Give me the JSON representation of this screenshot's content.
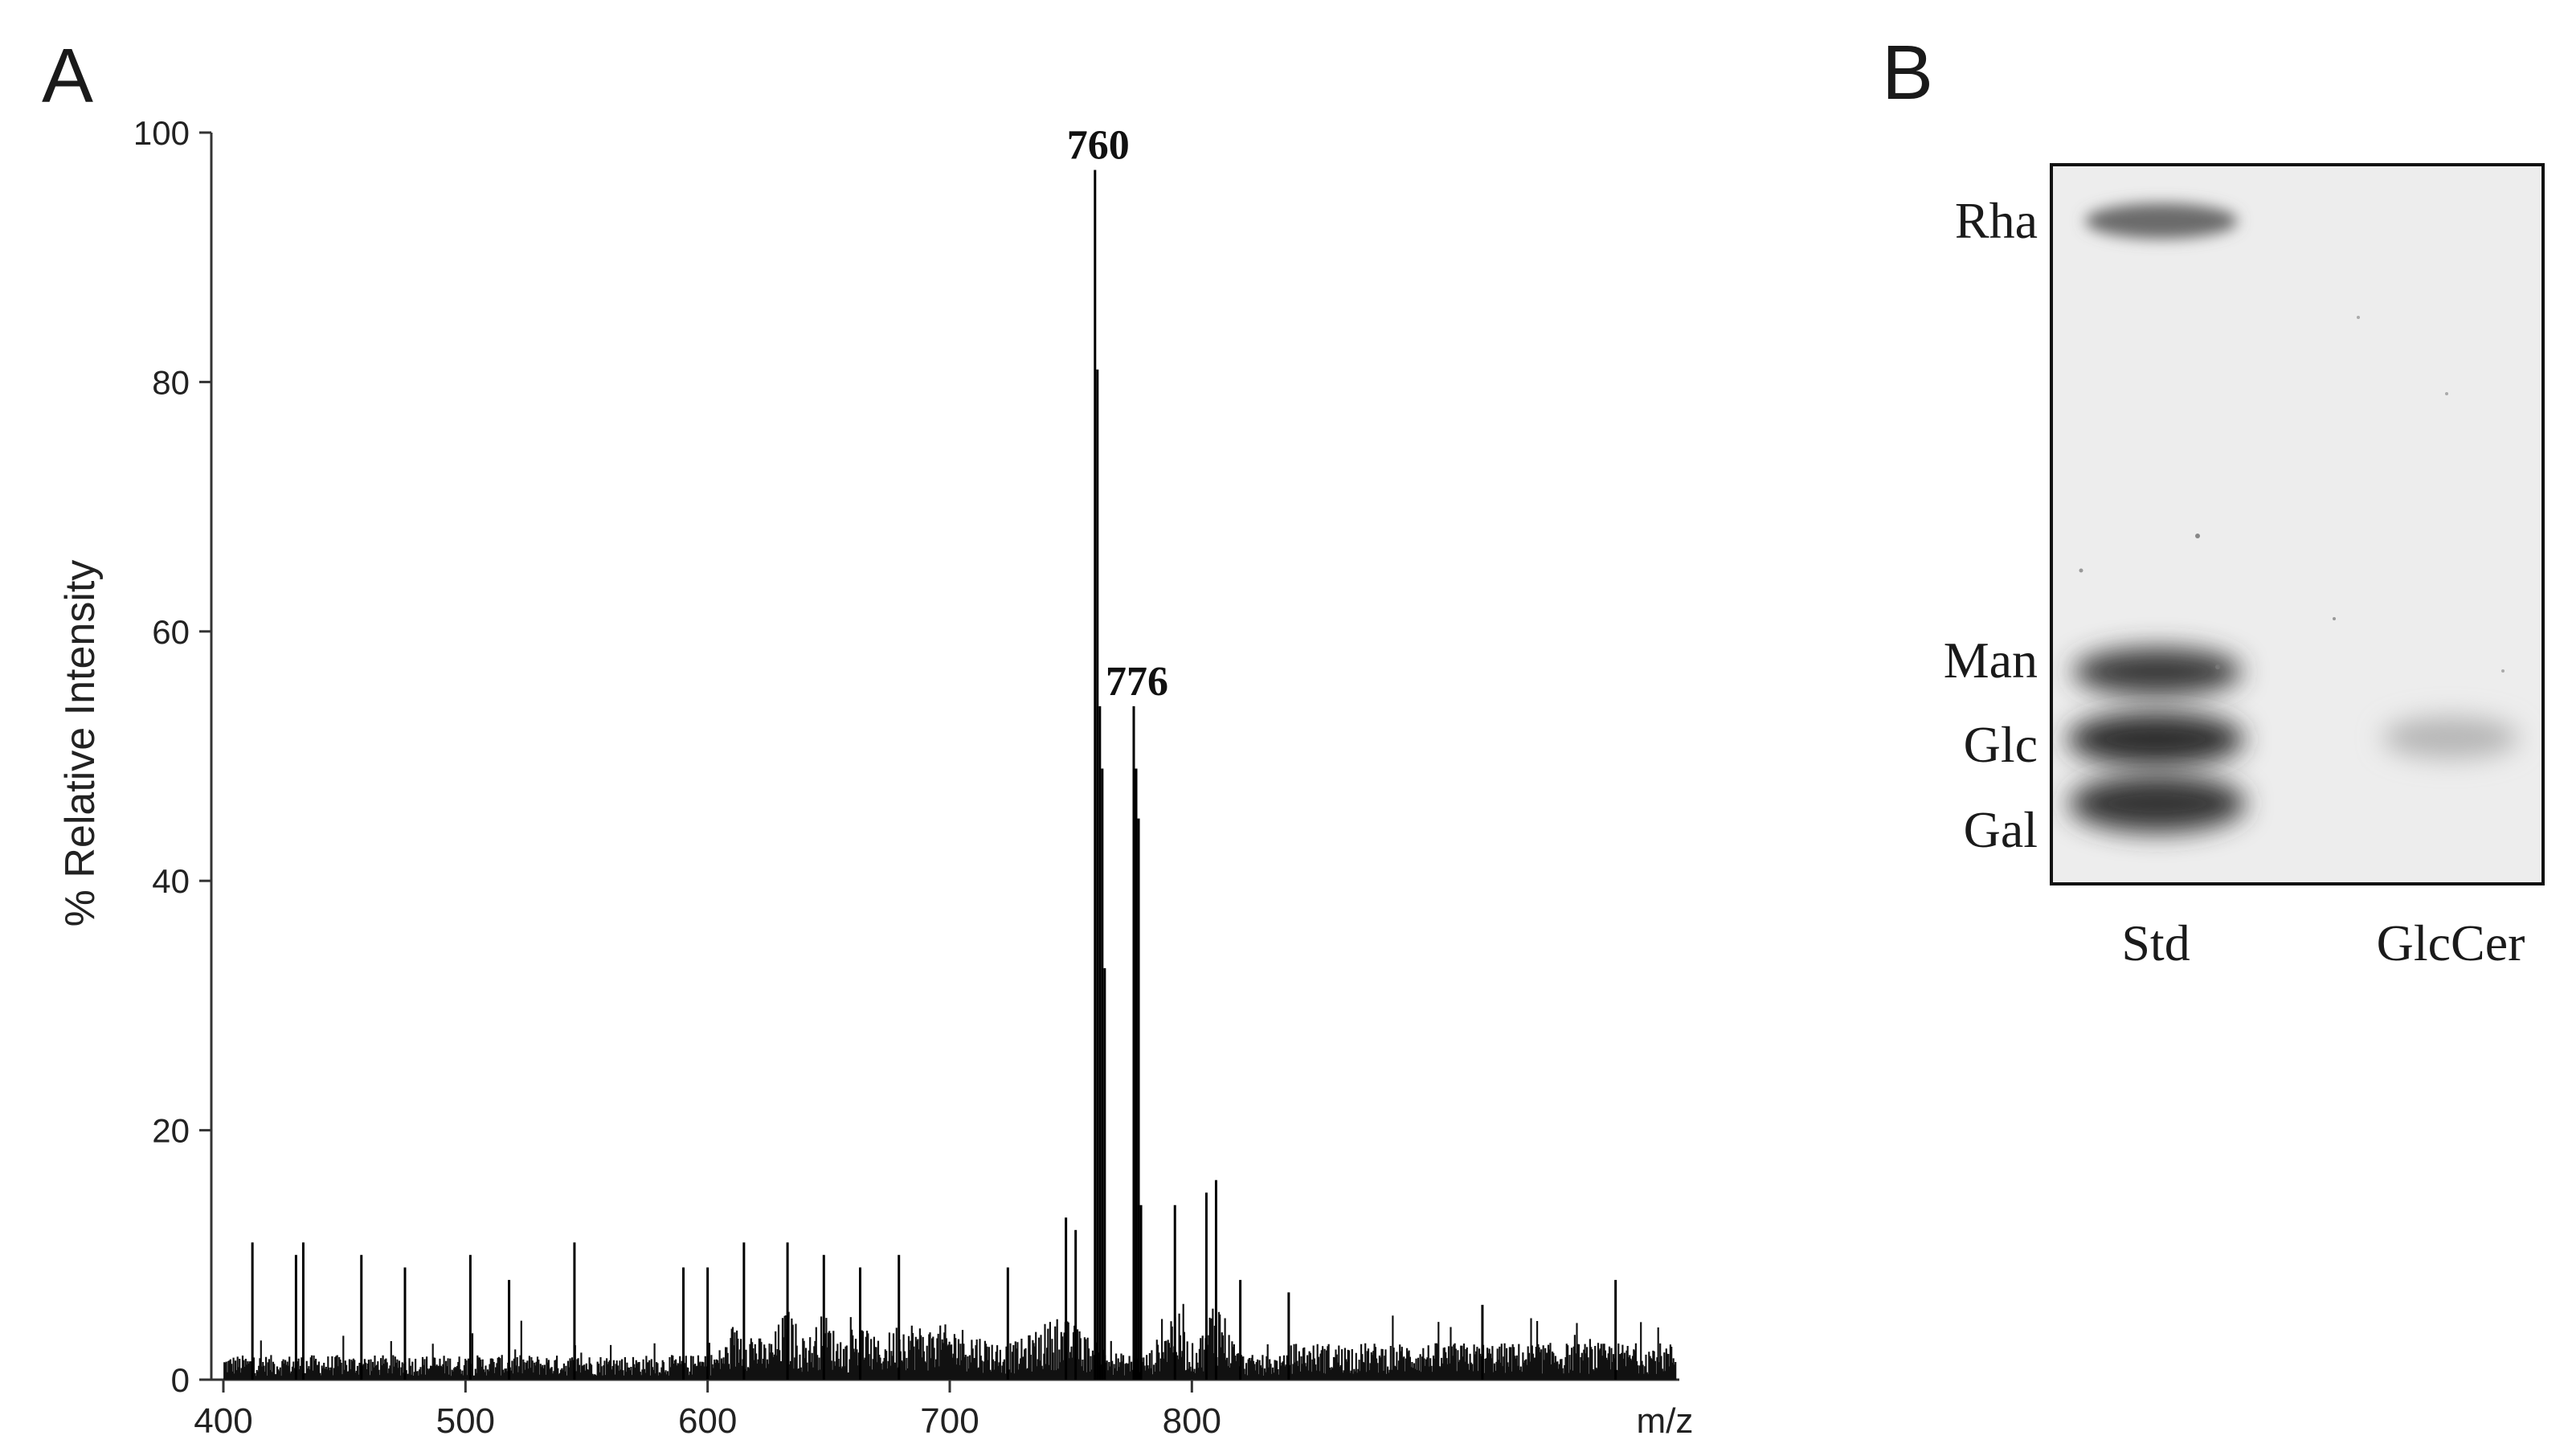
{
  "figure": {
    "panel_a_label": "A",
    "panel_b_label": "B"
  },
  "chart_data": [
    {
      "type": "line",
      "panel": "A",
      "title": "",
      "xlabel": "m/z",
      "ylabel": "% Relative Intensity",
      "xlim": [
        400,
        1000
      ],
      "ylim": [
        0,
        100
      ],
      "xticks": [
        "400",
        "500",
        "600",
        "700",
        "800"
      ],
      "yticks": [
        "0",
        "20",
        "40",
        "60",
        "80",
        "100"
      ],
      "grid": false,
      "series": [
        {
          "peaks": [
            {
              "x": 412,
              "y": 11
            },
            {
              "x": 430,
              "y": 10
            },
            {
              "x": 433,
              "y": 11
            },
            {
              "x": 457,
              "y": 10
            },
            {
              "x": 475,
              "y": 9
            },
            {
              "x": 502,
              "y": 10
            },
            {
              "x": 518,
              "y": 8
            },
            {
              "x": 545,
              "y": 11
            },
            {
              "x": 590,
              "y": 9
            },
            {
              "x": 600,
              "y": 9
            },
            {
              "x": 615,
              "y": 11
            },
            {
              "x": 633,
              "y": 11
            },
            {
              "x": 648,
              "y": 10
            },
            {
              "x": 663,
              "y": 9
            },
            {
              "x": 679,
              "y": 10
            },
            {
              "x": 724,
              "y": 9
            },
            {
              "x": 748,
              "y": 13
            },
            {
              "x": 752,
              "y": 12
            },
            {
              "x": 760,
              "y": 97
            },
            {
              "x": 761,
              "y": 81
            },
            {
              "x": 762,
              "y": 54
            },
            {
              "x": 763,
              "y": 49
            },
            {
              "x": 764,
              "y": 33
            },
            {
              "x": 776,
              "y": 54
            },
            {
              "x": 777,
              "y": 49
            },
            {
              "x": 778,
              "y": 45
            },
            {
              "x": 779,
              "y": 14
            },
            {
              "x": 793,
              "y": 14
            },
            {
              "x": 806,
              "y": 15
            },
            {
              "x": 810,
              "y": 16
            },
            {
              "x": 820,
              "y": 8
            },
            {
              "x": 840,
              "y": 7
            },
            {
              "x": 920,
              "y": 6
            },
            {
              "x": 975,
              "y": 8
            }
          ]
        }
      ],
      "annotations": [
        {
          "x": 760,
          "y": 97,
          "text": "760"
        },
        {
          "x": 776,
          "y": 54,
          "text": "776"
        }
      ]
    }
  ],
  "panel_b": {
    "row_labels": [
      "Rha",
      "Man",
      "Glc",
      "Gal"
    ],
    "lane_labels": [
      "Std",
      "GlcCer"
    ]
  }
}
